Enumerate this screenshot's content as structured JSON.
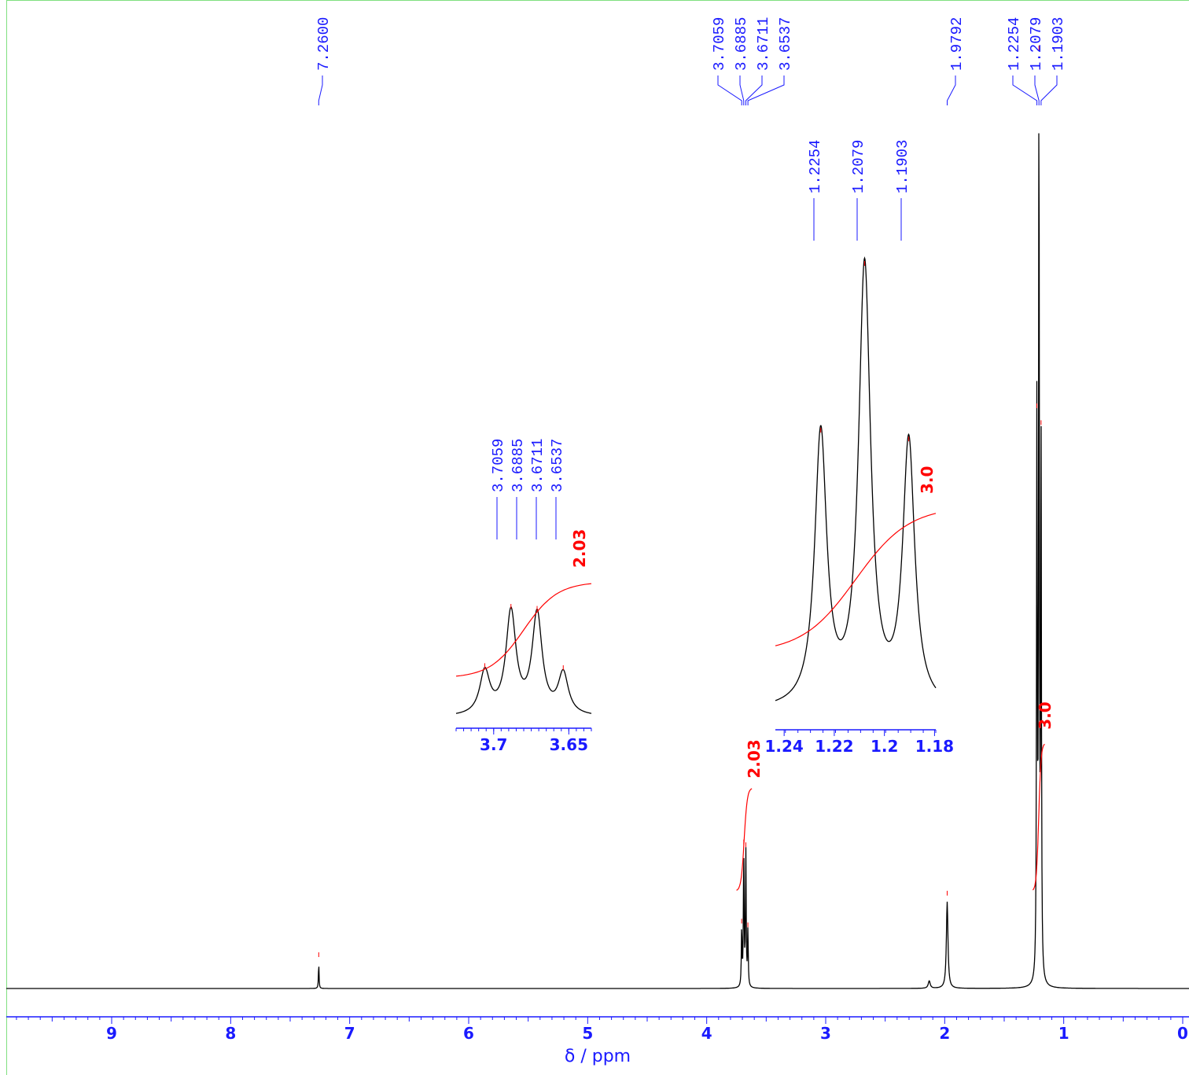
{
  "chart_data": {
    "type": "line",
    "title": "",
    "xlabel": "δ / ppm",
    "ylabel": "",
    "xlim": [
      9.9,
      0
    ],
    "x_ticks": [
      "9",
      "8",
      "7",
      "6",
      "5",
      "4",
      "3",
      "2",
      "1",
      "0"
    ],
    "peaks": [
      {
        "ppm": 7.26,
        "height": 0.027,
        "width": 0.003
      },
      {
        "ppm": 3.7059,
        "height": 0.063,
        "width": 0.0035
      },
      {
        "ppm": 3.6885,
        "height": 0.148,
        "width": 0.0035
      },
      {
        "ppm": 3.6711,
        "height": 0.145,
        "width": 0.0035
      },
      {
        "ppm": 3.6537,
        "height": 0.059,
        "width": 0.0035
      },
      {
        "ppm": 2.13,
        "height": 0.008,
        "width": 0.01
      },
      {
        "ppm": 1.9792,
        "height": 0.093,
        "width": 0.008
      },
      {
        "ppm": 1.2254,
        "height": 0.616,
        "width": 0.0035
      },
      {
        "ppm": 1.2079,
        "height": 1.0,
        "width": 0.0035
      },
      {
        "ppm": 1.1903,
        "height": 0.598,
        "width": 0.0035
      }
    ],
    "peak_labels_main": [
      "7.2600",
      "3.7059",
      "3.6885",
      "3.6711",
      "3.6537",
      "1.9792",
      "1.2254",
      "1.2079",
      "1.1903"
    ],
    "integrals": [
      {
        "range": [
          3.75,
          3.62
        ],
        "value": "2.03"
      },
      {
        "range": [
          1.26,
          1.16
        ],
        "value": "3.0"
      }
    ],
    "insets": [
      {
        "name": "inset-ch2",
        "xlim": [
          3.725,
          3.635
        ],
        "x_ticks": [
          "3.7",
          "3.65"
        ],
        "peak_labels": [
          "3.7059",
          "3.6885",
          "3.6711",
          "3.6537"
        ],
        "heights": [
          0.42,
          1.0,
          0.98,
          0.4
        ],
        "positions": [
          3.7059,
          3.6885,
          3.6711,
          3.6537
        ],
        "integral": "2.03"
      },
      {
        "name": "inset-ch3",
        "xlim": [
          1.2435,
          1.1795
        ],
        "x_ticks": [
          "1.24",
          "1.22",
          "1.2",
          "1.18"
        ],
        "peak_labels": [
          "1.2254",
          "1.2079",
          "1.1903"
        ],
        "heights": [
          0.62,
          1.0,
          0.6
        ],
        "positions": [
          1.2254,
          1.2079,
          1.1903
        ],
        "integral": "3.0"
      }
    ],
    "grid": false
  }
}
